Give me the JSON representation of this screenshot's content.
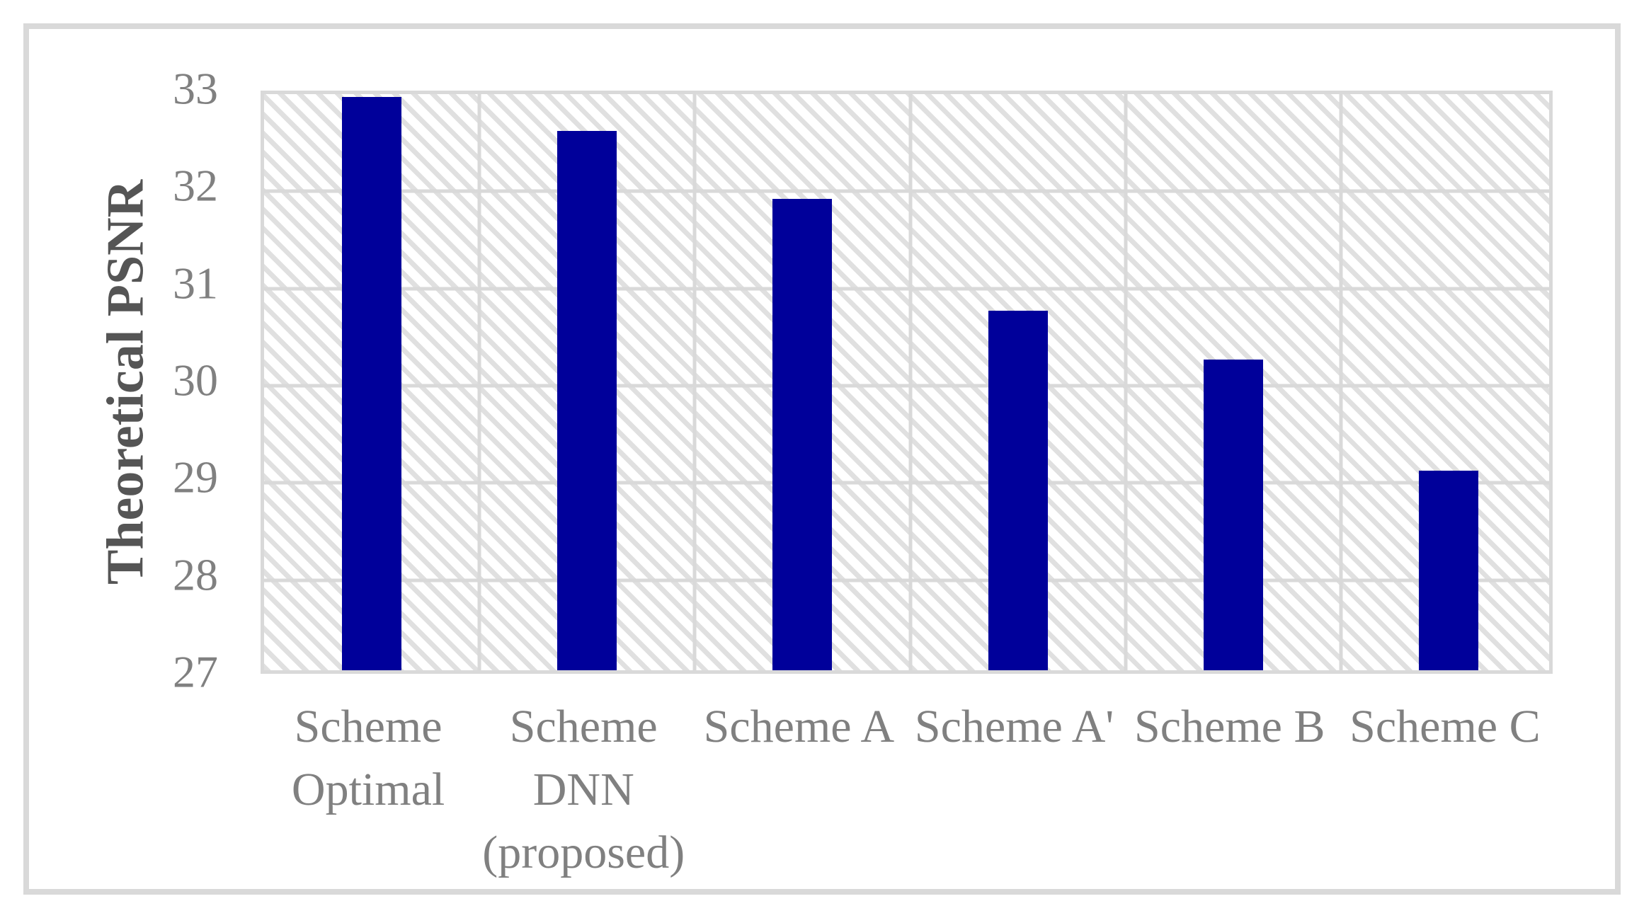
{
  "figure": {
    "frame_color": "#d9d9d9",
    "background": "#ffffff"
  },
  "chart_data": {
    "type": "bar",
    "categories": [
      "Scheme\nOptimal",
      "Scheme\nDNN\n(proposed)",
      "Scheme A",
      "Scheme A'",
      "Scheme B",
      "Scheme C"
    ],
    "values": [
      32.9,
      32.55,
      31.85,
      30.7,
      30.2,
      29.05
    ],
    "title": "",
    "xlabel": "",
    "ylabel": "Theoretical PSNR",
    "ylim": [
      27,
      33
    ],
    "yticks": [
      27,
      28,
      29,
      30,
      31,
      32,
      33
    ],
    "grid": true,
    "legend": "none",
    "plot_background": "light-downward-diagonal-hatch",
    "bar_color": "#00009a",
    "gridline_color": "#d9d9d9",
    "hatch_color": "#e0e0e0",
    "tick_label_color": "#808080",
    "axis_title_color": "#555555"
  }
}
